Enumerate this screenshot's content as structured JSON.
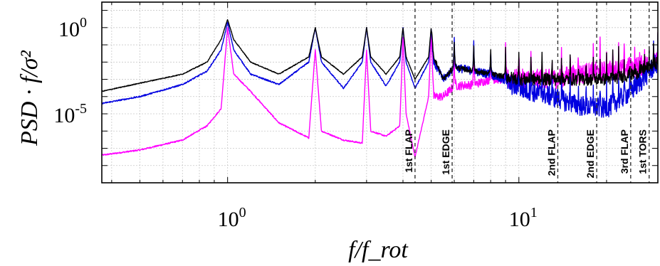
{
  "chart_data": {
    "type": "line",
    "title": "",
    "xlabel": "f/f_rot",
    "ylabel": "PSD · f/σ²",
    "x_scale": "log",
    "y_scale": "log",
    "xlim": [
      0.37,
      30
    ],
    "ylim": [
      1e-09,
      30
    ],
    "grid": true,
    "x_tick_labels": [
      {
        "value": 1,
        "mantissa": "10",
        "exponent": "0"
      },
      {
        "value": 10,
        "mantissa": "10",
        "exponent": "1"
      }
    ],
    "y_tick_labels": [
      {
        "value": 1,
        "mantissa": "10",
        "exponent": "0"
      },
      {
        "value": 1e-05,
        "mantissa": "10",
        "exponent": "-5"
      }
    ],
    "mode_lines": [
      {
        "label": "1st FLAP",
        "x": 4.4
      },
      {
        "label": "1st EDGE",
        "x": 5.9
      },
      {
        "label": "2nd FLAP",
        "x": 13.6
      },
      {
        "label": "2nd EDGE",
        "x": 18.5
      },
      {
        "label": "3rd FLAP",
        "x": 24.2
      },
      {
        "label": "1st TORS",
        "x": 28.0
      }
    ],
    "peak_harmonics": [
      1,
      2,
      3,
      4,
      5,
      6,
      7,
      8,
      9,
      10,
      11,
      12,
      13,
      14,
      15,
      16,
      17,
      18,
      19,
      20,
      21,
      22,
      23,
      24,
      25,
      26,
      27,
      28,
      29
    ],
    "series": [
      {
        "color": "#000000",
        "x": [
          0.37,
          0.5,
          0.7,
          0.85,
          0.95,
          1.0,
          1.05,
          1.2,
          1.5,
          1.9,
          2.0,
          2.1,
          2.5,
          2.9,
          3.0,
          3.1,
          3.5,
          3.9,
          4.0,
          4.1,
          4.4,
          4.9,
          5.0,
          5.1,
          5.5,
          6.0,
          7.0,
          8.0,
          10.0,
          13.0,
          16.0,
          20.0,
          25.0,
          30.0
        ],
        "y": [
          0.0002,
          0.0006,
          0.002,
          0.01,
          0.2,
          3,
          0.2,
          0.01,
          0.002,
          0.02,
          1,
          0.02,
          0.002,
          0.02,
          1,
          0.02,
          0.002,
          0.02,
          1,
          0.02,
          0.001,
          0.02,
          1,
          0.02,
          0.001,
          0.005,
          0.003,
          0.002,
          0.001,
          0.001,
          0.001,
          0.001,
          0.002,
          0.01
        ]
      },
      {
        "color": "#0000e0",
        "x": [
          0.37,
          0.5,
          0.7,
          0.85,
          0.95,
          1.0,
          1.05,
          1.2,
          1.5,
          1.9,
          2.0,
          2.1,
          2.5,
          2.9,
          3.0,
          3.1,
          3.5,
          3.9,
          4.0,
          4.1,
          4.4,
          4.9,
          5.0,
          5.1,
          5.5,
          6.0,
          7.0,
          8.0,
          10.0,
          13.0,
          16.0,
          20.0,
          25.0,
          30.0
        ],
        "y": [
          4e-05,
          0.0001,
          0.0005,
          0.003,
          0.05,
          2,
          0.05,
          0.002,
          0.0005,
          0.01,
          1,
          0.01,
          0.0003,
          0.01,
          1,
          0.01,
          0.0004,
          0.01,
          1,
          0.01,
          0.0003,
          0.01,
          1,
          0.01,
          0.001,
          0.005,
          0.003,
          0.002,
          0.0003,
          0.0001,
          3e-05,
          2e-05,
          0.0003,
          0.01
        ]
      },
      {
        "color": "#ff00ff",
        "x": [
          0.37,
          0.5,
          0.7,
          0.85,
          0.95,
          1.0,
          1.05,
          1.2,
          1.5,
          1.9,
          2.0,
          2.1,
          2.5,
          2.9,
          3.0,
          3.1,
          3.5,
          3.9,
          4.0,
          4.1,
          4.4,
          4.9,
          5.0,
          5.1,
          5.5,
          6.0,
          7.0,
          8.0,
          10.0,
          13.0,
          16.0,
          20.0,
          25.0,
          30.0
        ],
        "y": [
          4e-08,
          8e-08,
          3e-07,
          2e-06,
          2e-05,
          1,
          0.002,
          0.0002,
          3e-06,
          4e-07,
          0.05,
          1e-06,
          3e-07,
          2e-07,
          0.05,
          1e-06,
          5e-07,
          2e-06,
          0.3,
          1e-05,
          3e-08,
          0.0001,
          0.5,
          0.0001,
          0.0001,
          0.0004,
          0.0005,
          0.001,
          0.001,
          0.001,
          0.002,
          0.003,
          0.005,
          0.01
        ]
      }
    ]
  }
}
